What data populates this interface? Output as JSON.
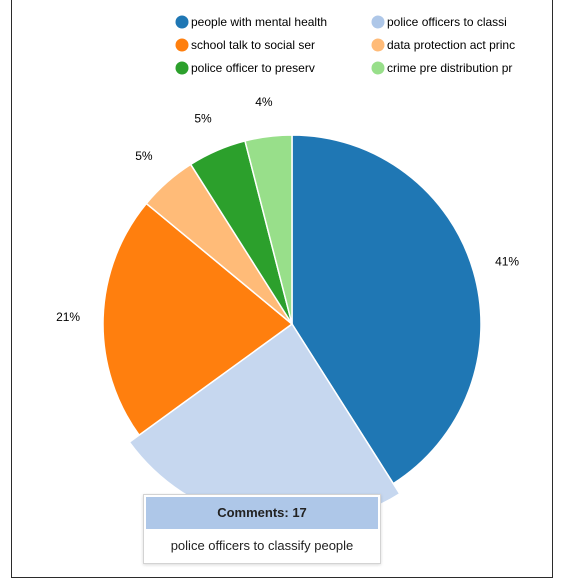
{
  "chart_data": {
    "type": "pie",
    "slices": [
      {
        "name": "people with mental health",
        "percent": 41,
        "label": "41%",
        "color": "#1f77b4"
      },
      {
        "name": "police officers to classi",
        "percent": 24,
        "label": "",
        "color": "#c6d7ef"
      },
      {
        "name": "school talk to social ser",
        "percent": 21,
        "label": "21%",
        "color": "#ff7f0e"
      },
      {
        "name": "data protection act princ",
        "percent": 5,
        "label": "5%",
        "color": "#ffbb78"
      },
      {
        "name": "police officer to preserv",
        "percent": 5,
        "label": "5%",
        "color": "#2ca02c"
      },
      {
        "name": "crime pre distribution pr",
        "percent": 4,
        "label": "4%",
        "color": "#98df8a"
      }
    ],
    "legend_position": "top",
    "highlighted_slice": "police officers to classi"
  },
  "legend": {
    "items": [
      {
        "label": "people with mental health",
        "color": "#1f77b4"
      },
      {
        "label": "police officers to classi",
        "color": "#aec7e8"
      },
      {
        "label": "school talk to social ser",
        "color": "#ff7f0e"
      },
      {
        "label": "data protection act princ",
        "color": "#ffbb78"
      },
      {
        "label": "police officer to preserv",
        "color": "#2ca02c"
      },
      {
        "label": "crime pre distribution pr",
        "color": "#98df8a"
      }
    ]
  },
  "tooltip": {
    "title": "Comments: 17",
    "text": "police officers to classify people",
    "header_color": "#aec7e8"
  }
}
